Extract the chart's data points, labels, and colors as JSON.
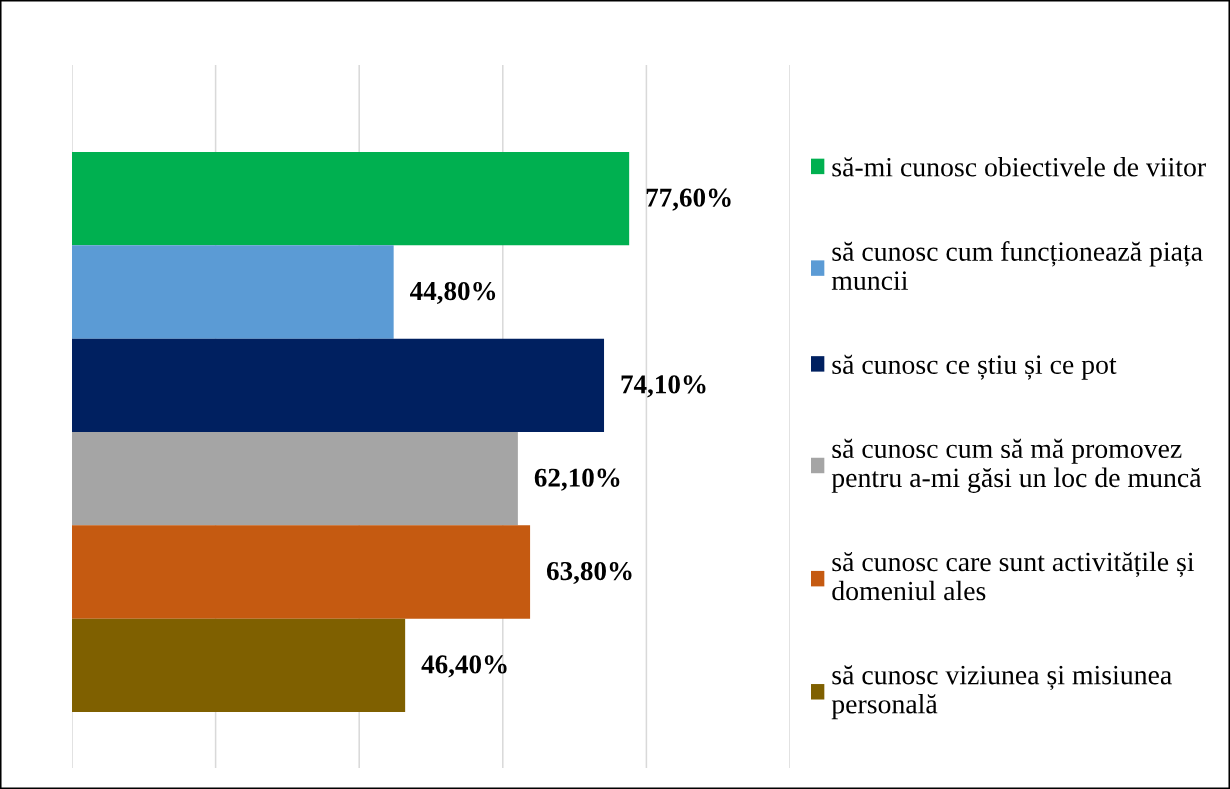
{
  "chart_data": {
    "type": "bar",
    "orientation": "horizontal",
    "categories": [
      null
    ],
    "series": [
      {
        "name": "să-mi cunosc obiectivele de viitor",
        "color": "#00b050",
        "values": [
          77.6
        ],
        "value_labels": [
          "77,60%"
        ]
      },
      {
        "name": "să cunosc cum funcționează piața\nmuncii",
        "color": "#5b9bd5",
        "values": [
          44.8
        ],
        "value_labels": [
          "44,80%"
        ]
      },
      {
        "name": "să cunosc ce știu și ce pot",
        "color": "#002060",
        "values": [
          74.1
        ],
        "value_labels": [
          "74,10%"
        ]
      },
      {
        "name": "să cunosc cum să mă promovez\npentru a-mi găsi un loc de muncă",
        "color": "#a5a5a5",
        "values": [
          62.1
        ],
        "value_labels": [
          "62,10%"
        ]
      },
      {
        "name": "să cunosc care sunt activitățile și\ndomeniul ales",
        "color": "#c55a11",
        "values": [
          63.8
        ],
        "value_labels": [
          "63,80%"
        ]
      },
      {
        "name": "să cunosc viziunea și misiunea\npersonală",
        "color": "#7f6000",
        "values": [
          46.4
        ],
        "value_labels": [
          "46,40%"
        ]
      }
    ],
    "xlim": [
      0,
      100
    ],
    "xticks": [
      0,
      20,
      40,
      60,
      80,
      100
    ],
    "grid": "x",
    "tick_labels": false,
    "legend": "right"
  }
}
